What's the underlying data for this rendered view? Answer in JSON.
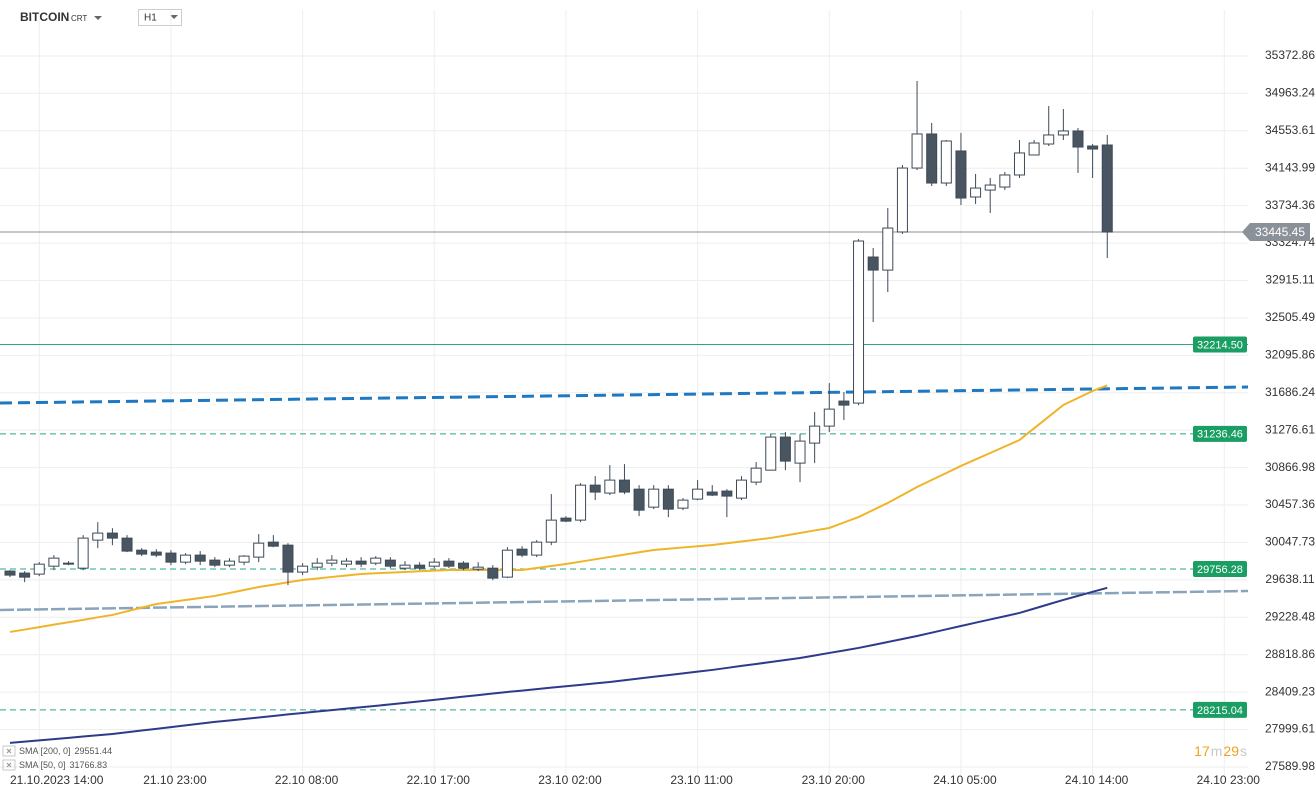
{
  "chart_data": {
    "type": "candlestick",
    "title": "BITCOIN",
    "subtitle": "CRT",
    "timeframe": "H1",
    "timer": [
      "17",
      "m",
      "29",
      "s"
    ],
    "up_color": "#ffffff",
    "down_color": "#4a5562",
    "grid": true,
    "categories": [
      null,
      null,
      "21.10.2023 14:00",
      null,
      null,
      null,
      null,
      null,
      null,
      null,
      null,
      "21.10 23:00",
      null,
      null,
      null,
      null,
      null,
      null,
      null,
      null,
      "22.10 08:00",
      null,
      null,
      null,
      null,
      null,
      null,
      null,
      null,
      "22.10 17:00",
      null,
      null,
      null,
      null,
      null,
      null,
      null,
      null,
      "23.10 02:00",
      null,
      null,
      null,
      null,
      null,
      null,
      null,
      null,
      "23.10 11:00",
      null,
      null,
      null,
      null,
      null,
      null,
      null,
      null,
      "23.10 20:00",
      null,
      null,
      null,
      null,
      null,
      null,
      null,
      null,
      "24.10 05:00",
      null,
      null,
      null,
      null,
      null,
      null,
      null,
      null,
      "24.10 14:00",
      null,
      null,
      null,
      null,
      null,
      null,
      null,
      null,
      "24.10 23:00"
    ],
    "open": [
      29734,
      29712,
      29701,
      29788,
      29821,
      29766,
      30073,
      30150,
      30095,
      29963,
      29942,
      29931,
      29832,
      29909,
      29854,
      29799,
      29832,
      29887,
      30051,
      30018,
      29723,
      29777,
      29821,
      29810,
      29843,
      29821,
      29854,
      29766,
      29799,
      29788,
      29843,
      29821,
      29755,
      29766,
      29668,
      29974,
      29909,
      30051,
      30314,
      30292,
      30675,
      30588,
      30730,
      30631,
      30434,
      30631,
      30423,
      30522,
      30599,
      30610,
      30533,
      30708,
      30839,
      31201,
      30916,
      31135,
      31321,
      31595,
      31573,
      33172,
      33029,
      33446,
      34146,
      34519,
      33982,
      34333,
      33829,
      33905,
      33938,
      34070,
      34289,
      34409,
      34508,
      34552,
      34387,
      34398,
      null,
      null,
      null,
      null,
      null,
      null,
      null,
      null
    ],
    "high": [
      29744,
      29734,
      29832,
      29909,
      29843,
      30128,
      30270,
      30204,
      30128,
      29985,
      29974,
      29963,
      29931,
      29953,
      29887,
      29876,
      29909,
      30139,
      30128,
      30040,
      29821,
      29876,
      29909,
      29876,
      29887,
      29898,
      29887,
      29843,
      29832,
      29876,
      29876,
      29843,
      29832,
      29799,
      29996,
      30007,
      30073,
      30577,
      30336,
      30697,
      30774,
      30894,
      30905,
      30675,
      30675,
      30675,
      30533,
      30730,
      30675,
      30631,
      30774,
      30927,
      31234,
      31256,
      31234,
      31475,
      31792,
      31694,
      33369,
      33270,
      33708,
      34179,
      35099,
      34639,
      34453,
      34530,
      34081,
      34037,
      34103,
      34453,
      34453,
      34825,
      34792,
      34584,
      34409,
      34508,
      null,
      null,
      null,
      null,
      null,
      null,
      null,
      null
    ],
    "low": [
      29668,
      29613,
      29679,
      29744,
      29799,
      29744,
      29985,
      30018,
      29942,
      29898,
      29887,
      29799,
      29810,
      29799,
      29777,
      29777,
      29799,
      29832,
      29996,
      29580,
      29690,
      29744,
      29788,
      29777,
      29777,
      29799,
      29766,
      29744,
      29744,
      29766,
      29766,
      29744,
      29734,
      29635,
      29657,
      29887,
      29887,
      30018,
      30270,
      30270,
      30511,
      30566,
      30577,
      30336,
      30412,
      30325,
      30401,
      30511,
      30555,
      30325,
      30511,
      30675,
      30839,
      30839,
      30708,
      30916,
      31256,
      31387,
      31551,
      32460,
      32789,
      33424,
      34124,
      33949,
      33949,
      33741,
      33752,
      33654,
      33905,
      34037,
      34289,
      34387,
      34453,
      34092,
      34037,
      33161,
      null,
      null,
      null,
      null,
      null,
      null,
      null,
      null
    ],
    "close": [
      29690,
      29668,
      29810,
      29876,
      29821,
      30095,
      30150,
      30095,
      29953,
      29920,
      29909,
      29832,
      29909,
      29843,
      29799,
      29843,
      29898,
      30040,
      30007,
      29723,
      29788,
      29821,
      29854,
      29843,
      29810,
      29876,
      29788,
      29799,
      29766,
      29832,
      29788,
      29766,
      29777,
      29657,
      29963,
      29909,
      30051,
      30292,
      30281,
      30675,
      30599,
      30730,
      30599,
      30401,
      30631,
      30412,
      30511,
      30631,
      30566,
      30555,
      30730,
      30861,
      31201,
      30938,
      31157,
      31321,
      31507,
      31551,
      33347,
      33029,
      33489,
      34146,
      34519,
      33982,
      34442,
      33818,
      33927,
      33960,
      34070,
      34311,
      34420,
      34508,
      34552,
      34376,
      34354,
      33445.45,
      null,
      null,
      null,
      null,
      null,
      null,
      null,
      null
    ],
    "series": [
      {
        "name": "SMA [200, 0]",
        "color": "#2e3a8c",
        "values": [
          27853,
          27867,
          27881,
          27895,
          27909,
          27923,
          27937,
          27951,
          27970,
          27989,
          28007,
          28026,
          28045,
          28064,
          28083,
          28099,
          28115,
          28132,
          28148,
          28165,
          28181,
          28197,
          28212,
          28228,
          28244,
          28259,
          28275,
          28291,
          28308,
          28325,
          28342,
          28360,
          28377,
          28394,
          28411,
          28426,
          28442,
          28458,
          28473,
          28489,
          28505,
          28520,
          28539,
          28558,
          28577,
          28595,
          28614,
          28633,
          28652,
          28674,
          28696,
          28717,
          28739,
          28761,
          28783,
          28810,
          28838,
          28865,
          28893,
          28925,
          28958,
          28991,
          29024,
          29060,
          29097,
          29133,
          29169,
          29205,
          29240,
          29276,
          29323,
          29371,
          29418,
          29463,
          29507,
          29551.44,
          null,
          null,
          null,
          null,
          null,
          null,
          null,
          null
        ]
      },
      {
        "name": "SMA [50, 0]",
        "color": "#f0b429",
        "values": [
          29068,
          29094,
          29121,
          29148,
          29174,
          29200,
          29228,
          29254,
          29294,
          29334,
          29374,
          29396,
          29418,
          29440,
          29462,
          29494,
          29527,
          29560,
          29585,
          29612,
          29637,
          29653,
          29670,
          29686,
          29702,
          29710,
          29717,
          29724,
          29732,
          29739,
          29746,
          29746,
          29746,
          29746,
          29746,
          29746,
          29768,
          29790,
          29812,
          29837,
          29863,
          29889,
          29914,
          29940,
          29965,
          29979,
          29993,
          30006,
          30020,
          30039,
          30058,
          30077,
          30097,
          30124,
          30151,
          30179,
          30206,
          30266,
          30326,
          30403,
          30480,
          30567,
          30655,
          30731,
          30808,
          30885,
          30956,
          31027,
          31098,
          31169,
          31297,
          31424,
          31552,
          31629,
          31706,
          31766.83,
          null,
          null,
          null,
          null,
          null,
          null,
          null,
          null
        ]
      }
    ],
    "levels": [
      {
        "price": 32214.5,
        "label": "32214.50",
        "dashed": false,
        "color": "#2aa58a"
      },
      {
        "price": 31236.46,
        "label": "31236.46",
        "dashed": true,
        "color": "#2aa58a"
      },
      {
        "price": 29756.28,
        "label": "29756.28",
        "dashed": true,
        "color": "#2aa58a"
      },
      {
        "price": 28215.04,
        "label": "28215.04",
        "dashed": true,
        "color": "#2aa58a"
      }
    ],
    "trendlines": [
      {
        "values": [
          31574,
          31749
        ],
        "color": "#1e78c2"
      },
      {
        "values": [
          29308,
          29516
        ],
        "color": "#8aa4bb"
      }
    ],
    "ylim": [
      27502,
      35876
    ],
    "yticks": [
      35372.86,
      34963.24,
      34553.61,
      34143.99,
      33734.36,
      33324.74,
      32915.11,
      32505.49,
      32095.86,
      31686.24,
      31276.61,
      30866.98,
      30457.36,
      30047.73,
      29638.11,
      29228.48,
      28818.86,
      28409.23,
      27999.61,
      27589.98
    ]
  }
}
